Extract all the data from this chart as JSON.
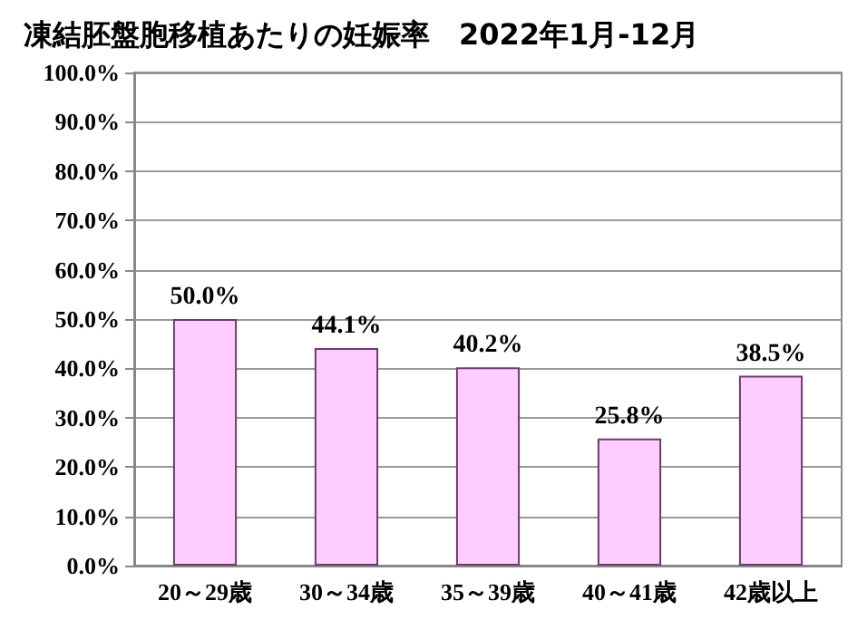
{
  "chart_data": {
    "type": "bar",
    "title": "凍結胚盤胞移植あたりの妊娠率　2022年1月-12月",
    "categories": [
      "20～29歳",
      "30～34歳",
      "35～39歳",
      "40～41歳",
      "42歳以上"
    ],
    "values": [
      50.0,
      44.1,
      40.2,
      25.8,
      38.5
    ],
    "value_labels": [
      "50.0%",
      "44.1%",
      "40.2%",
      "25.8%",
      "38.5%"
    ],
    "color": "#ffccff",
    "ylim": [
      0,
      100
    ],
    "yticks": [
      {
        "value": 0,
        "label": "0.0%"
      },
      {
        "value": 10,
        "label": "10.0%"
      },
      {
        "value": 20,
        "label": "20.0%"
      },
      {
        "value": 30,
        "label": "30.0%"
      },
      {
        "value": 40,
        "label": "40.0%"
      },
      {
        "value": 50,
        "label": "50.0%"
      },
      {
        "value": 60,
        "label": "60.0%"
      },
      {
        "value": 70,
        "label": "70.0%"
      },
      {
        "value": 80,
        "label": "80.0%"
      },
      {
        "value": 90,
        "label": "90.0%"
      },
      {
        "value": 100,
        "label": "100.0%"
      }
    ],
    "grid": "y"
  }
}
